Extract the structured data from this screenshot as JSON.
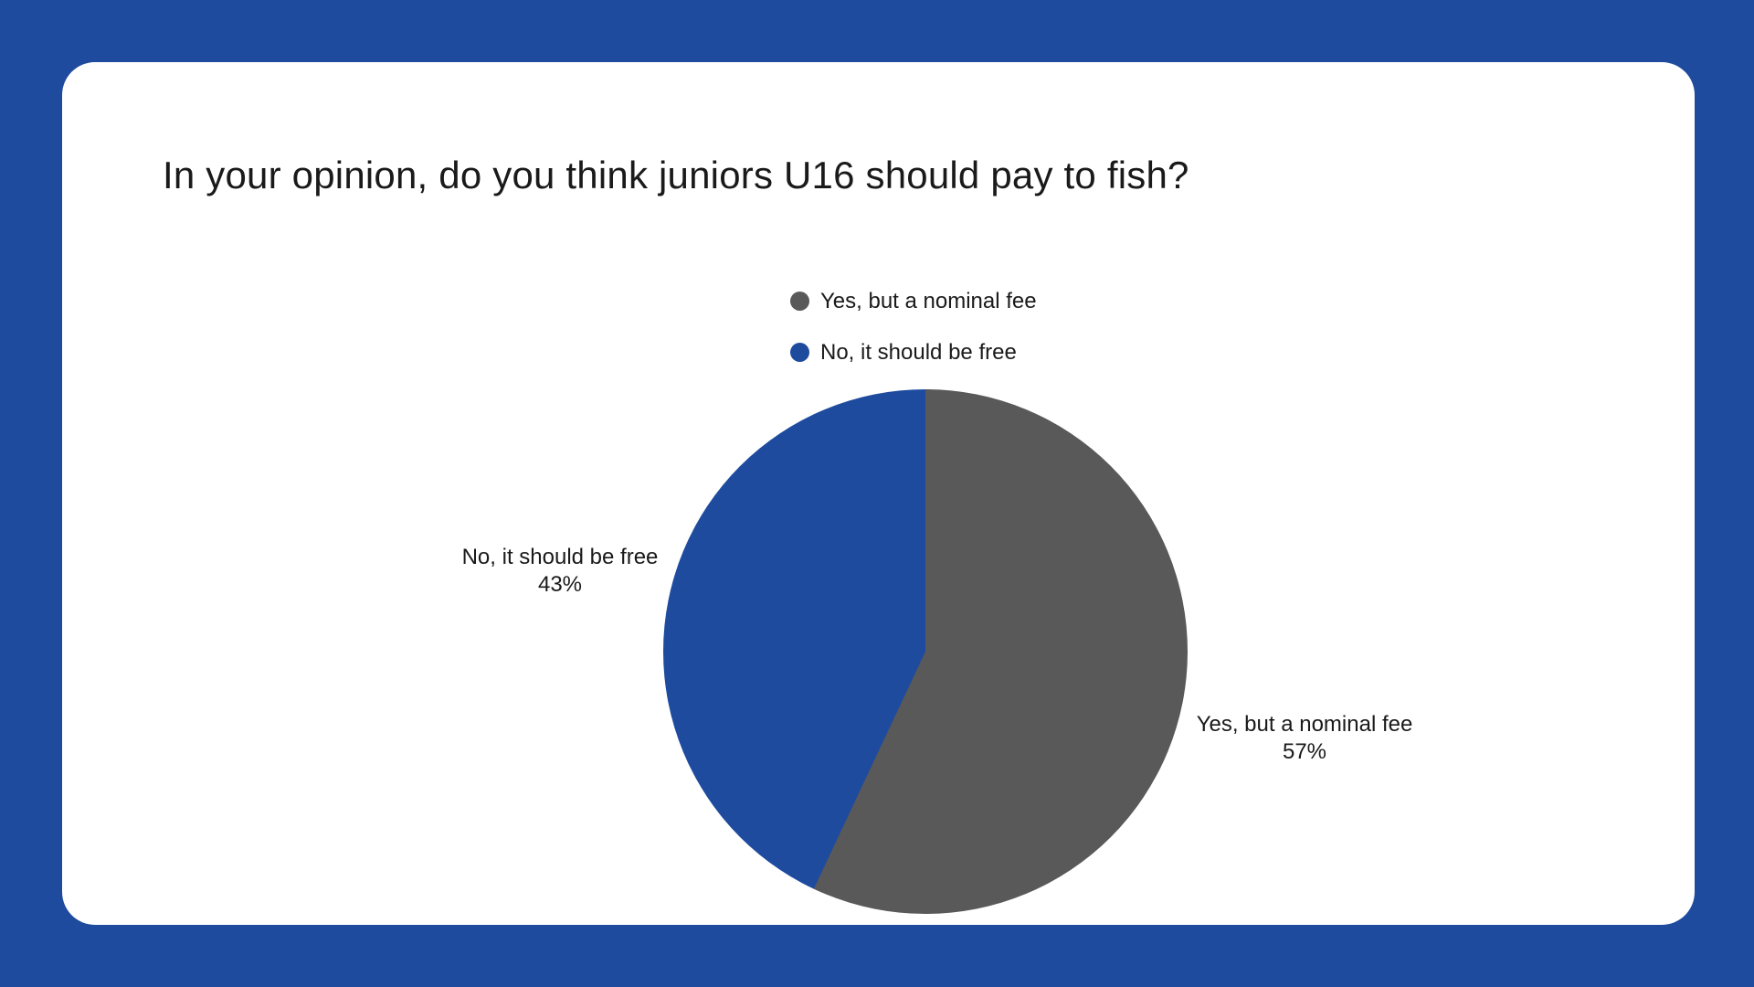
{
  "page": {
    "background_color": "#1E4B9E",
    "card_color": "#FFFFFF",
    "text_color": "#1A1A1A"
  },
  "chart_data": {
    "type": "pie",
    "title": "In your opinion, do you think juniors U16 should pay to fish?",
    "slices": [
      {
        "label": "Yes, but a nominal fee",
        "value": 57,
        "percent_label": "57%",
        "color": "#595959"
      },
      {
        "label": "No, it should be free",
        "value": 43,
        "percent_label": "43%",
        "color": "#1E4B9E"
      }
    ],
    "start_angle_deg": 0,
    "direction": "clockwise",
    "legend_position": "above-chart-left-aligned",
    "callout_labels_shown": true
  }
}
